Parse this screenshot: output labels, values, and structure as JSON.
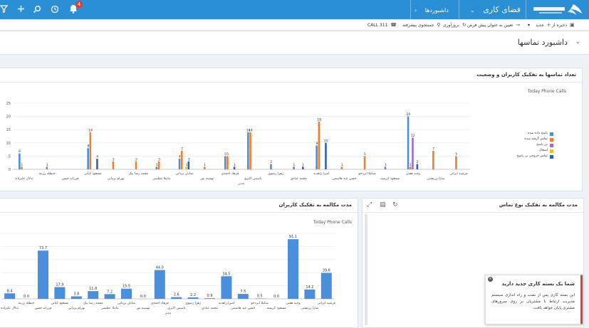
{
  "colors": {
    "topbar": "#2b8fd6",
    "answered": "#4a8fdb",
    "unanswered": "#f07f2b",
    "no_answer": "#9a6fc4",
    "busy": "#e9c21e",
    "outgoing_no_answer": "#2f5fb8"
  },
  "header": {
    "workspace_label": "فضای کاری",
    "dashboards_label": "داشبوردها",
    "notifications_count": "4",
    "icons": [
      "bell-icon",
      "history-icon",
      "search-icon",
      "plus-icon",
      "filter-icon"
    ]
  },
  "toolbar": {
    "save_as": "ذخیره از",
    "new": "جدید",
    "set_default": "تعیین به عنوان پیش فرض",
    "refresh": "بروزآوری",
    "advanced_search": "جستجوی پیشرفته",
    "call": "CALL 311"
  },
  "page_title": "داشبورد تماسها",
  "panel1": {
    "title": "تعداد تماسها به تفکیک کاربران و وضعیت",
    "subtitle": "Today Phone Calls",
    "xlabel": "مدیر",
    "legend": [
      "پاسخ داده شده",
      "تماس گرفته شده",
      "بی پاسخ",
      "اشغال",
      "تماس خروجی بی پاسخ"
    ]
  },
  "panel2": {
    "title": "مدت مکالمه به تفکیک کاربران",
    "subtitle": "Today Phone Calls",
    "xlabel": "مدیر"
  },
  "panel3": {
    "title": "مدت مکالمه به تفکیک نوع تماس"
  },
  "notice": {
    "title": "شما یک بسته کاری جدید دارید",
    "body": "این بسته کاری پس از نصب و راه اندازی سیستم مدیریت ارتباط با مشتریان بر روی سرورهای مشتری پایان خواهد یافت."
  },
  "chart_data": [
    {
      "type": "bar",
      "title": "تعداد تماسها به تفکیک کاربران و وضعیت",
      "subtitle": "Today Phone Calls",
      "xlabel": "مدیر",
      "ylim": [
        0,
        25
      ],
      "yticks": [
        0,
        5,
        10,
        15,
        20,
        25
      ],
      "categories": [
        "فرشید ایرانی",
        "سارا زرتشتی",
        "وحید هفتی",
        "مسعود کریمیه",
        "شکیلا ایزدخو",
        "حسن عبد هاشمی",
        "امیرا زاهدیه",
        "محمد عبادی",
        "زهرا رضوی",
        "یاسمن اکبری",
        "فرهاد احمدی",
        "تهمینه نور",
        "شایان یزدانی",
        "مانیلا عظیمی",
        "محمد رضا بیک",
        "بهرام یزدانی",
        "مسعود کیانی",
        "فرزانه حسن",
        "حنظله زرینه",
        "تدلال علیزاده"
      ],
      "series": [
        {
          "name": "پاسخ داده شده",
          "values": [
            0,
            0,
            20,
            1,
            0,
            0,
            9,
            1,
            2,
            14,
            5,
            0,
            4,
            1,
            0,
            0,
            8,
            0,
            0,
            6
          ]
        },
        {
          "name": "تماس گرفته شده",
          "values": [
            5,
            7,
            1,
            0,
            5,
            1,
            18,
            0,
            0,
            14,
            5,
            1,
            7,
            3,
            3,
            3,
            14,
            0,
            0,
            1
          ]
        },
        {
          "name": "بی پاسخ",
          "values": [
            0,
            0,
            12,
            0,
            0,
            0,
            0,
            0,
            0,
            0,
            0,
            0,
            0,
            0,
            0,
            0,
            0,
            0,
            1,
            0
          ]
        },
        {
          "name": "اشغال",
          "values": [
            0,
            0,
            0,
            0,
            0,
            0,
            0,
            0,
            0,
            0,
            0,
            0,
            1,
            0,
            0,
            0,
            0,
            0,
            0,
            0
          ]
        },
        {
          "name": "تماس خروجی بی پاسخ",
          "values": [
            0,
            0,
            2,
            0,
            0,
            0,
            10,
            1,
            0,
            0,
            1,
            0,
            3,
            0,
            0,
            0,
            4,
            0,
            0,
            0
          ]
        }
      ]
    },
    {
      "type": "bar",
      "title": "مدت مکالمه به تفکیک کاربران",
      "subtitle": "Today Phone Calls",
      "xlabel": "مدیر",
      "categories": [
        "فرشید ایرانی",
        "سارا زرتشتی",
        "وحید هفتی",
        "مسعود کریمیه",
        "شکیلا ایزدخو",
        "حسن عبد هاشمی",
        "امیرا زاهدیه",
        "محمد عبادی",
        "زهرا رضوی",
        "یاسمن اکبری",
        "فرهاد احمدی",
        "تهمینه نور",
        "شایان یزدانی",
        "مانیلا عظیمی",
        "محمد رضا بیک",
        "بهرام یزدانی",
        "مسعود کیانی",
        "فرزانه حسن",
        "حنظله زرینه",
        "تدلال علیزاده"
      ],
      "values": [
        39.6,
        14.2,
        91.1,
        0.0,
        0.5,
        7.5,
        34.5,
        0.9,
        2.2,
        2.6,
        44.0,
        0.0,
        15.5,
        7.2,
        11.8,
        3.8,
        17.9,
        73.7,
        0.0,
        8.4
      ]
    }
  ]
}
